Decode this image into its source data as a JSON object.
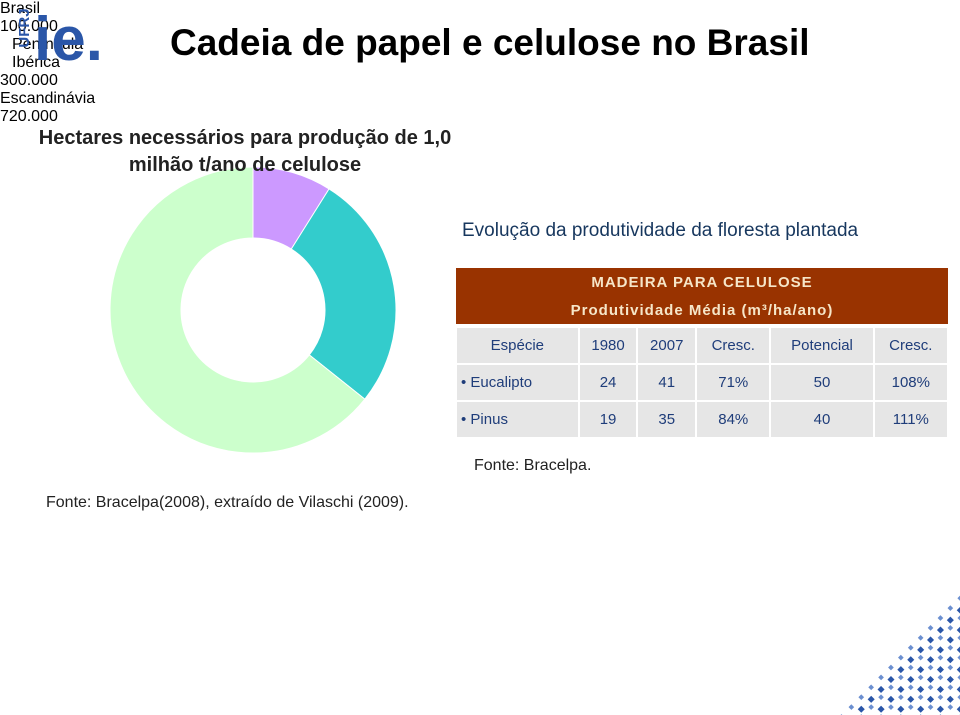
{
  "logo": {
    "side": "UFRJ",
    "main": "ie."
  },
  "title": "Cadeia de papel e celulose no Brasil",
  "chart_data": {
    "type": "donut",
    "title": "Hectares necessários para produção de 1,0 milhão t/ano de celulose",
    "categories": [
      "Brasil",
      "Península Ibérica",
      "Escandinávia"
    ],
    "values": [
      100000,
      300000,
      720000
    ],
    "value_labels": [
      "100.000",
      "300.000",
      "720.000"
    ],
    "colors": [
      "#cc99ff",
      "#33cccc",
      "#ccffcc"
    ],
    "source": "Fonte: Bracelpa(2008), extraído de Vilaschi (2009)."
  },
  "table_section": {
    "title": "Evolução da produtividade da floresta plantada",
    "table": {
      "title": "MADEIRA PARA CELULOSE",
      "subtitle": "Produtividade Média (m³/ha/ano)",
      "header": [
        "Espécie",
        "1980",
        "2007",
        "Cresc.",
        "Potencial",
        "Cresc."
      ],
      "rows": [
        [
          "Eucalipto",
          "24",
          "41",
          "71%",
          "50",
          "108%"
        ],
        [
          "Pinus",
          "19",
          "35",
          "84%",
          "40",
          "111%"
        ]
      ]
    },
    "source": "Fonte: Bracelpa."
  }
}
